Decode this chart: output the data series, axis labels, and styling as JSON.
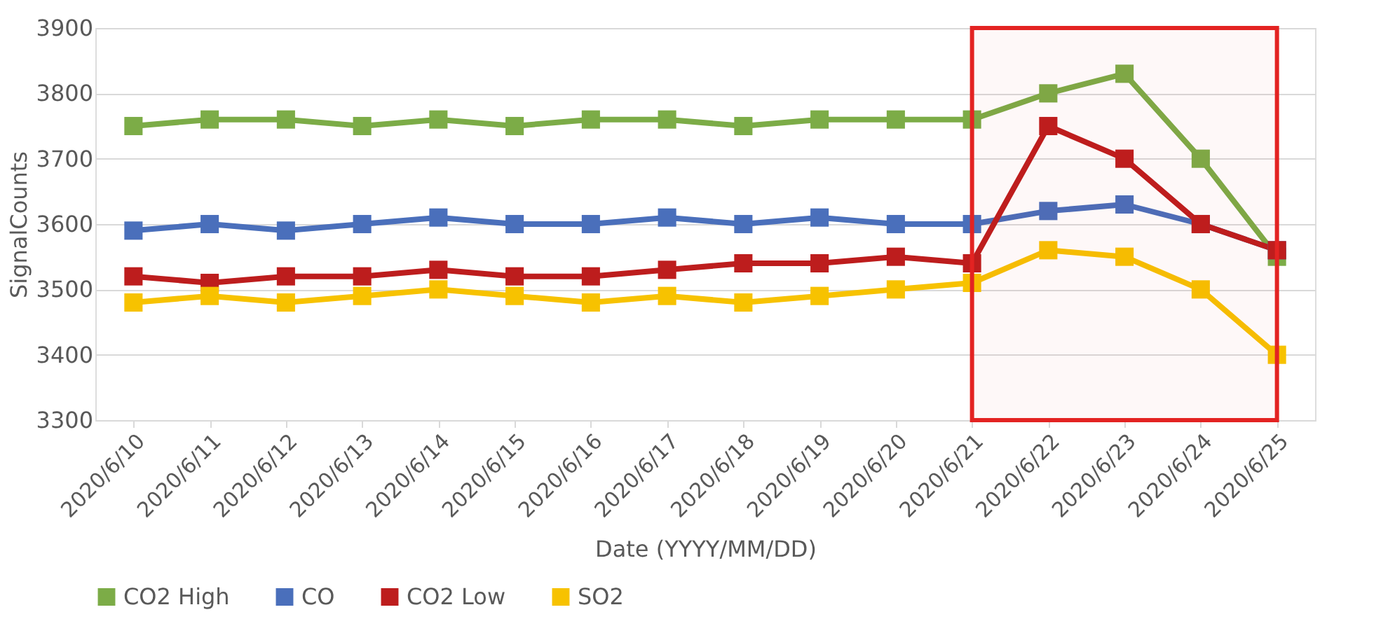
{
  "chart_data": {
    "type": "line",
    "xlabel": "Date (YYYY/MM/DD)",
    "ylabel": "SignalCounts",
    "categories": [
      "2020/6/10",
      "2020/6/11",
      "2020/6/12",
      "2020/6/13",
      "2020/6/14",
      "2020/6/15",
      "2020/6/16",
      "2020/6/17",
      "2020/6/18",
      "2020/6/19",
      "2020/6/20",
      "2020/6/21",
      "2020/6/22",
      "2020/6/23",
      "2020/6/24",
      "2020/6/25"
    ],
    "series": [
      {
        "name": "CO2 High",
        "color": "#7cac47",
        "values": [
          3750,
          3760,
          3760,
          3750,
          3760,
          3750,
          3760,
          3760,
          3750,
          3760,
          3760,
          3760,
          3800,
          3830,
          3700,
          3550
        ]
      },
      {
        "name": "CO",
        "color": "#4a6fbb",
        "values": [
          3590,
          3600,
          3590,
          3600,
          3610,
          3600,
          3600,
          3610,
          3600,
          3610,
          3600,
          3600,
          3620,
          3630,
          3600,
          3560
        ]
      },
      {
        "name": "CO2 Low",
        "color": "#bd1d1d",
        "values": [
          3520,
          3510,
          3520,
          3520,
          3530,
          3520,
          3520,
          3530,
          3540,
          3540,
          3550,
          3540,
          3750,
          3700,
          3600,
          3560
        ]
      },
      {
        "name": "SO2",
        "color": "#f7c200",
        "values": [
          3480,
          3490,
          3480,
          3490,
          3500,
          3490,
          3480,
          3490,
          3480,
          3490,
          3500,
          3510,
          3560,
          3550,
          3500,
          3400
        ]
      }
    ],
    "ylim": [
      3300,
      3900
    ],
    "yticks": [
      3300,
      3400,
      3500,
      3600,
      3700,
      3800,
      3900
    ],
    "grid": "y",
    "legend": "bottom",
    "marker": "square",
    "line_style": "solid",
    "bands": [
      {
        "axis": "x",
        "from": "2020/6/21",
        "to": "2020/6/25",
        "color": "#e32322"
      }
    ]
  }
}
